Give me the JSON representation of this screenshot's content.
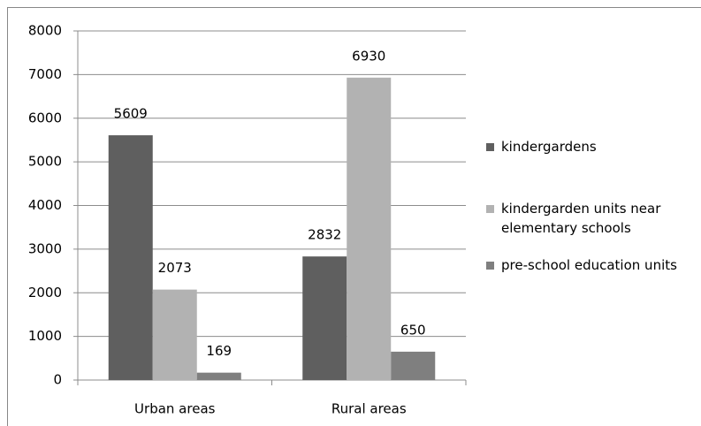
{
  "chart_data": {
    "type": "bar",
    "categories": [
      "Urban areas",
      "Rural areas"
    ],
    "series": [
      {
        "name": "kindergardens",
        "color": "#5f5f5f",
        "values": [
          5609,
          2832
        ]
      },
      {
        "name": "kindergarden units near elementary schools",
        "color": "#b2b2b2",
        "values": [
          2073,
          6930
        ]
      },
      {
        "name": "pre-school education units",
        "color": "#7f7f7f",
        "values": [
          169,
          650
        ]
      }
    ],
    "ylim": [
      0,
      8000
    ],
    "yticks": [
      0,
      1000,
      2000,
      3000,
      4000,
      5000,
      6000,
      7000,
      8000
    ],
    "grid": true,
    "legend": "right"
  }
}
